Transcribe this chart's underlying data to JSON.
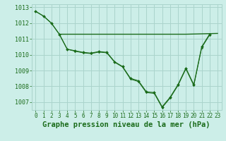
{
  "bg_color": "#cceee8",
  "grid_color": "#aad4cc",
  "line_color": "#1a6b1a",
  "title": "Graphe pression niveau de la mer (hPa)",
  "xlim": [
    -0.5,
    23.5
  ],
  "ylim": [
    1006.5,
    1013.2
  ],
  "yticks": [
    1007,
    1008,
    1009,
    1010,
    1011,
    1012,
    1013
  ],
  "xticks": [
    0,
    1,
    2,
    3,
    4,
    5,
    6,
    7,
    8,
    9,
    10,
    11,
    12,
    13,
    14,
    15,
    16,
    17,
    18,
    19,
    20,
    21,
    22,
    23
  ],
  "series1_x": [
    0,
    1,
    2,
    3,
    4,
    5,
    6,
    7,
    8,
    9,
    10,
    11,
    12,
    13,
    14,
    15,
    16,
    17,
    18,
    19,
    20,
    21,
    22
  ],
  "series1_y": [
    1012.75,
    1012.45,
    1012.0,
    1011.3,
    1010.35,
    1010.25,
    1010.15,
    1010.1,
    1010.2,
    1010.15,
    1009.55,
    1009.25,
    1008.5,
    1008.35,
    1007.65,
    1007.6,
    1006.7,
    1007.3,
    1008.1,
    1009.15,
    1008.1,
    1010.5,
    1011.3
  ],
  "series2_x": [
    3,
    19,
    23
  ],
  "series2_y": [
    1011.3,
    1011.3,
    1011.35
  ],
  "series3_x": [
    0,
    1,
    2,
    3,
    4,
    5,
    6,
    7,
    8,
    9,
    10,
    11,
    12,
    13,
    14,
    15,
    16,
    17,
    18,
    19,
    20,
    21,
    22
  ],
  "series3_y": [
    1012.75,
    1012.45,
    1012.0,
    1011.3,
    1010.35,
    1010.22,
    1010.12,
    1010.07,
    1010.17,
    1010.12,
    1009.52,
    1009.22,
    1008.45,
    1008.3,
    1007.6,
    1007.55,
    1006.65,
    1007.25,
    1008.05,
    1009.1,
    1008.05,
    1010.45,
    1011.25
  ]
}
